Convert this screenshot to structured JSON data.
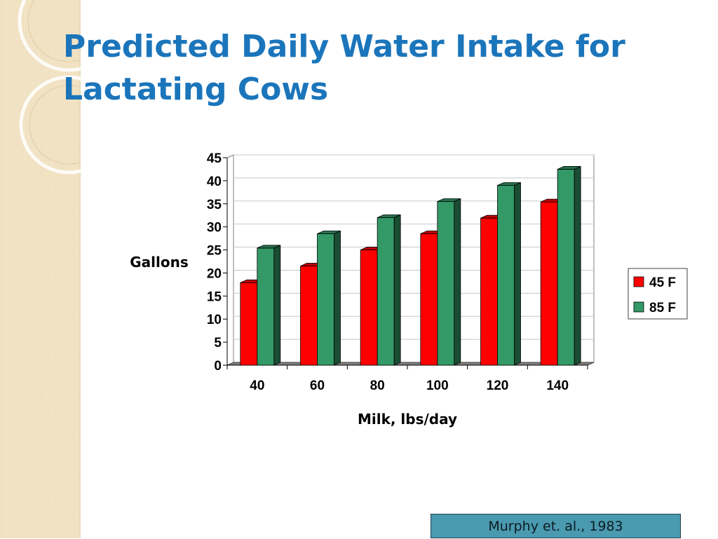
{
  "slide": {
    "title": "Predicted Daily Water Intake for Lactating Cows",
    "citation": "Murphy et. al., 1983"
  },
  "colors": {
    "title": "#1b75bb",
    "series_45F": "#ff0000",
    "series_85F": "#339966",
    "citation_bg": "#4a9ab0"
  },
  "chart_data": {
    "type": "bar",
    "categories": [
      "40",
      "60",
      "80",
      "100",
      "120",
      "140"
    ],
    "series": [
      {
        "name": "45 F",
        "values": [
          17.9,
          21.5,
          25.0,
          28.5,
          31.9,
          35.4
        ]
      },
      {
        "name": "85 F",
        "values": [
          25.4,
          28.5,
          32.0,
          35.5,
          39.0,
          42.5
        ]
      }
    ],
    "xlabel": "Milk, lbs/day",
    "ylabel": "Gallons",
    "ylim": [
      0,
      45
    ],
    "yticks": [
      "0",
      "5",
      "10",
      "15",
      "20",
      "25",
      "30",
      "35",
      "40",
      "45"
    ],
    "grid": true,
    "legend": "right",
    "style": "3d-clustered-column"
  }
}
